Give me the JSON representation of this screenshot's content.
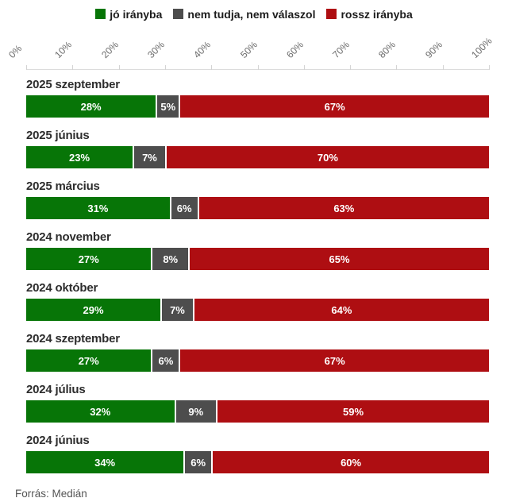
{
  "legend": {
    "items": [
      {
        "label": "jó irányba",
        "color": "#077507"
      },
      {
        "label": "nem tudja, nem válaszol",
        "color": "#4d4d4d"
      },
      {
        "label": "rossz irányba",
        "color": "#ae0e12"
      }
    ]
  },
  "axis": {
    "ticks": [
      "0%",
      "10%",
      "20%",
      "30%",
      "40%",
      "50%",
      "60%",
      "70%",
      "80%",
      "90%",
      "100%"
    ]
  },
  "chart_data": {
    "type": "bar",
    "orientation": "horizontal",
    "stacked": true,
    "categories": [
      "2025 szeptember",
      "2025 június",
      "2025 március",
      "2024 november",
      "2024 október",
      "2024 szeptember",
      "2024 július",
      "2024 június"
    ],
    "series": [
      {
        "name": "jó irányba",
        "color": "#077507",
        "values": [
          28,
          23,
          31,
          27,
          29,
          27,
          32,
          34
        ]
      },
      {
        "name": "nem tudja, nem válaszol",
        "color": "#4d4d4d",
        "values": [
          5,
          7,
          6,
          8,
          7,
          6,
          9,
          6
        ]
      },
      {
        "name": "rossz irányba",
        "color": "#ae0e12",
        "values": [
          67,
          70,
          63,
          65,
          64,
          67,
          59,
          60
        ]
      }
    ],
    "value_suffix": "%",
    "xlim": [
      0,
      100
    ],
    "grid": false,
    "legend_position": "top"
  },
  "footer": {
    "source": "Forrás: Medián"
  }
}
